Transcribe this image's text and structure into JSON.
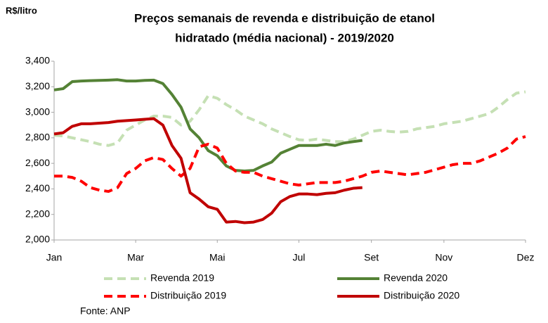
{
  "chart_data": {
    "type": "line",
    "title": [
      "Preços semanais de revenda e distribuição de etanol",
      "hidratado (média nacional) - 2019/2020"
    ],
    "y_label": "R$/litro",
    "source": "Fonte: ANP",
    "x": [
      0,
      1,
      2,
      3,
      4,
      5,
      6,
      7,
      8,
      9,
      10,
      11,
      12,
      13,
      14,
      15,
      16,
      17,
      18,
      19,
      20,
      21,
      22,
      23,
      24,
      25,
      26,
      27,
      28,
      29,
      30,
      31,
      32,
      33,
      34,
      35,
      36,
      37,
      38,
      39,
      40,
      41,
      42,
      43,
      44,
      45,
      46,
      47,
      48,
      49,
      50,
      51,
      52
    ],
    "xlim": [
      0,
      52
    ],
    "xticks": [
      {
        "value": 0,
        "label": "Jan"
      },
      {
        "value": 9,
        "label": "Mar"
      },
      {
        "value": 18,
        "label": "Mai"
      },
      {
        "value": 27,
        "label": "Jul"
      },
      {
        "value": 35,
        "label": "Set"
      },
      {
        "value": 43,
        "label": "Nov"
      },
      {
        "value": 52,
        "label": "Dez"
      }
    ],
    "ylim": [
      2000,
      3400
    ],
    "yticks": [
      {
        "value": 2000,
        "label": "2,000"
      },
      {
        "value": 2200,
        "label": "2,200"
      },
      {
        "value": 2400,
        "label": "2,400"
      },
      {
        "value": 2600,
        "label": "2,600"
      },
      {
        "value": 2800,
        "label": "2,800"
      },
      {
        "value": 3000,
        "label": "3,000"
      },
      {
        "value": 3200,
        "label": "3,200"
      },
      {
        "value": 3400,
        "label": "3,400"
      }
    ],
    "grid": false,
    "series": [
      {
        "name": "Revenda 2019",
        "color": "#c5e0b4",
        "dashed": true,
        "values": [
          2820,
          2815,
          2800,
          2785,
          2770,
          2750,
          2740,
          2760,
          2860,
          2900,
          2940,
          2970,
          2970,
          2960,
          2900,
          2930,
          3020,
          3130,
          3110,
          3060,
          3020,
          2970,
          2940,
          2910,
          2870,
          2840,
          2810,
          2785,
          2780,
          2790,
          2780,
          2770,
          2770,
          2790,
          2820,
          2850,
          2860,
          2850,
          2845,
          2850,
          2870,
          2880,
          2890,
          2910,
          2920,
          2930,
          2950,
          2970,
          2990,
          3040,
          3100,
          3150,
          3160
        ]
      },
      {
        "name": "Revenda 2020",
        "color": "#548235",
        "dashed": false,
        "values": [
          3175,
          3185,
          3240,
          3245,
          3248,
          3250,
          3252,
          3255,
          3245,
          3245,
          3250,
          3252,
          3225,
          3140,
          3040,
          2870,
          2800,
          2700,
          2660,
          2580,
          2545,
          2540,
          2545,
          2580,
          2610,
          2680,
          2710,
          2740,
          2740,
          2740,
          2750,
          2740,
          2760,
          2770,
          2780,
          null,
          null,
          null,
          null,
          null,
          null,
          null,
          null,
          null,
          null,
          null,
          null,
          null,
          null,
          null,
          null,
          null,
          null
        ]
      },
      {
        "name": "Distribuição 2019",
        "color": "#ff0000",
        "dashed": true,
        "values": [
          2500,
          2500,
          2490,
          2460,
          2410,
          2390,
          2380,
          2410,
          2520,
          2560,
          2620,
          2645,
          2630,
          2560,
          2500,
          2560,
          2730,
          2750,
          2720,
          2600,
          2540,
          2530,
          2530,
          2500,
          2480,
          2460,
          2440,
          2430,
          2440,
          2450,
          2450,
          2450,
          2460,
          2480,
          2500,
          2530,
          2540,
          2530,
          2520,
          2510,
          2520,
          2530,
          2550,
          2570,
          2590,
          2600,
          2600,
          2620,
          2650,
          2680,
          2720,
          2790,
          2810
        ]
      },
      {
        "name": "Distribuição 2020",
        "color": "#c00000",
        "dashed": false,
        "values": [
          2830,
          2840,
          2890,
          2910,
          2910,
          2915,
          2920,
          2930,
          2935,
          2940,
          2945,
          2950,
          2900,
          2740,
          2640,
          2370,
          2320,
          2260,
          2240,
          2140,
          2145,
          2135,
          2140,
          2160,
          2210,
          2300,
          2340,
          2360,
          2360,
          2355,
          2365,
          2370,
          2390,
          2405,
          2410,
          null,
          null,
          null,
          null,
          null,
          null,
          null,
          null,
          null,
          null,
          null,
          null,
          null,
          null,
          null,
          null,
          null,
          null
        ]
      }
    ]
  }
}
